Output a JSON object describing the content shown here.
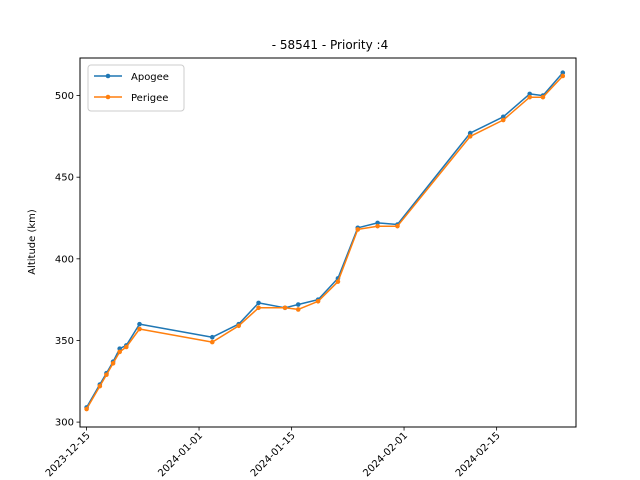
{
  "chart_data": {
    "type": "line",
    "title": "- 58541 - Priority :4",
    "xlabel": "",
    "ylabel": "Altitude (km)",
    "xlim": [
      "2023-12-14",
      "2024-02-27"
    ],
    "ylim": [
      297,
      523
    ],
    "xticks": [
      "2023-12-15",
      "2024-01-01",
      "2024-01-15",
      "2024-02-01",
      "2024-02-15"
    ],
    "yticks": [
      300,
      350,
      400,
      450,
      500
    ],
    "legend_position": "upper-left",
    "grid": false,
    "series": [
      {
        "name": "Apogee",
        "color": "#1f77b4",
        "x": [
          "2023-12-15",
          "2023-12-17",
          "2023-12-18",
          "2023-12-19",
          "2023-12-20",
          "2023-12-21",
          "2023-12-23",
          "2024-01-03",
          "2024-01-07",
          "2024-01-10",
          "2024-01-14",
          "2024-01-16",
          "2024-01-19",
          "2024-01-22",
          "2024-01-25",
          "2024-01-28",
          "2024-01-31",
          "2024-02-11",
          "2024-02-16",
          "2024-02-20",
          "2024-02-22",
          "2024-02-25"
        ],
        "y": [
          309,
          323,
          330,
          337,
          345,
          347,
          360,
          352,
          360,
          373,
          370,
          372,
          375,
          388,
          419,
          422,
          421,
          477,
          487,
          501,
          500,
          514
        ]
      },
      {
        "name": "Perigee",
        "color": "#ff7f0e",
        "x": [
          "2023-12-15",
          "2023-12-17",
          "2023-12-18",
          "2023-12-19",
          "2023-12-20",
          "2023-12-21",
          "2023-12-23",
          "2024-01-03",
          "2024-01-07",
          "2024-01-10",
          "2024-01-14",
          "2024-01-16",
          "2024-01-19",
          "2024-01-22",
          "2024-01-25",
          "2024-01-28",
          "2024-01-31",
          "2024-02-11",
          "2024-02-16",
          "2024-02-20",
          "2024-02-22",
          "2024-02-25"
        ],
        "y": [
          308,
          322,
          329,
          336,
          343,
          346,
          357,
          349,
          359,
          370,
          370,
          369,
          374,
          386,
          418,
          420,
          420,
          475,
          485,
          499,
          499,
          512
        ]
      }
    ]
  }
}
